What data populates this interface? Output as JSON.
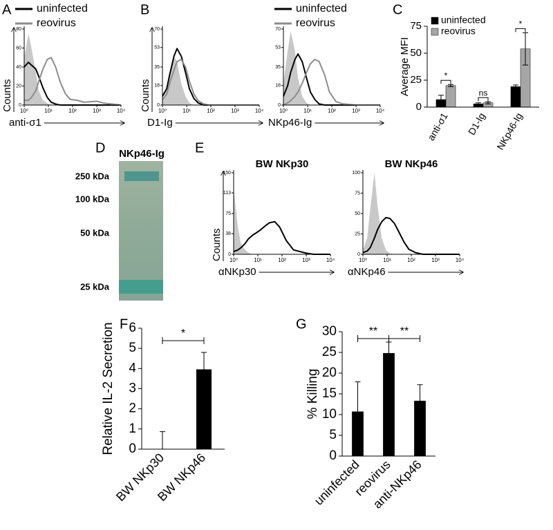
{
  "chart_data": [
    {
      "type": "line",
      "label": "A",
      "xscale": "log",
      "x": [
        1,
        1.5,
        2,
        3,
        4,
        6,
        9,
        13,
        20,
        30,
        50,
        80,
        150,
        300,
        1000,
        2000,
        10000
      ],
      "xlim": [
        1,
        10000
      ],
      "xticks": [
        {
          "value": 1,
          "label": "10⁰"
        },
        {
          "value": 10,
          "label": "10¹"
        },
        {
          "value": 100,
          "label": "10²"
        },
        {
          "value": 1000,
          "label": "10³"
        },
        {
          "value": 10000,
          "label": "10⁴"
        }
      ],
      "ylim": [
        0,
        80
      ],
      "yticks": [
        0,
        20,
        40,
        60,
        80
      ],
      "xlabel": "anti-σ1",
      "ylabel": "Counts",
      "series": [
        {
          "color": "#c8c8c8",
          "fill": true,
          "values": [
            50,
            75,
            60,
            35,
            15,
            5,
            2,
            0,
            0,
            0,
            0,
            0,
            0,
            0,
            0,
            0,
            0
          ]
        },
        {
          "name": "uninfected",
          "color": "#000000",
          "values": [
            40,
            45,
            42,
            38,
            30,
            18,
            8,
            3,
            1,
            0,
            0,
            0,
            0,
            0,
            0,
            0,
            0
          ]
        },
        {
          "name": "reovirus",
          "color": "#8c8c8c",
          "values": [
            5,
            5,
            8,
            15,
            25,
            38,
            48,
            50,
            40,
            25,
            12,
            6,
            5,
            3,
            4,
            2,
            0
          ]
        }
      ]
    },
    {
      "type": "line",
      "label": "B",
      "xscale": "log",
      "x": [
        1,
        1.5,
        2,
        3,
        4,
        6,
        9,
        13,
        20,
        30,
        50,
        80,
        150,
        300,
        1000,
        2000,
        10000
      ],
      "xlim": [
        1,
        10000
      ],
      "xticks": [
        {
          "value": 1,
          "label": "10⁰"
        },
        {
          "value": 10,
          "label": "10¹"
        },
        {
          "value": 100,
          "label": "10²"
        },
        {
          "value": 1000,
          "label": "10³"
        },
        {
          "value": 10000,
          "label": "10⁴"
        }
      ],
      "ylim": [
        0,
        70
      ],
      "yticks": [
        0,
        18,
        35,
        53,
        70
      ],
      "xlabel": "D1-Ig",
      "ylabel": "Counts",
      "series": [
        {
          "color": "#c8c8c8",
          "fill": true,
          "values": [
            5,
            15,
            30,
            45,
            40,
            20,
            8,
            2,
            0,
            0,
            0,
            0,
            0,
            0,
            0,
            0,
            0
          ]
        },
        {
          "color": "#000000",
          "values": [
            8,
            15,
            28,
            45,
            52,
            45,
            30,
            15,
            6,
            2,
            0,
            0,
            0,
            0,
            0,
            0,
            0
          ]
        },
        {
          "color": "#8c8c8c",
          "values": [
            5,
            10,
            20,
            32,
            40,
            42,
            35,
            22,
            10,
            4,
            1,
            0,
            0,
            0,
            0,
            0,
            0
          ]
        }
      ]
    },
    {
      "type": "line",
      "xscale": "log",
      "x": [
        1,
        1.5,
        2,
        3,
        4,
        6,
        9,
        13,
        20,
        30,
        50,
        80,
        150,
        300,
        1000,
        2000,
        10000
      ],
      "xlim": [
        1,
        10000
      ],
      "xticks": [
        {
          "value": 1,
          "label": "10⁰"
        },
        {
          "value": 10,
          "label": "10¹"
        },
        {
          "value": 100,
          "label": "10²"
        },
        {
          "value": 1000,
          "label": "10³"
        },
        {
          "value": 10000,
          "label": "10⁴"
        }
      ],
      "ylim": [
        0,
        70
      ],
      "yticks": [
        0,
        18,
        35,
        53,
        70
      ],
      "xlabel": "NKp46-Ig",
      "series": [
        {
          "color": "#c8c8c8",
          "fill": true,
          "values": [
            20,
            50,
            68,
            50,
            25,
            8,
            2,
            0,
            0,
            0,
            0,
            0,
            0,
            0,
            0,
            0,
            0
          ]
        },
        {
          "name": "uninfected",
          "color": "#000000",
          "values": [
            8,
            18,
            30,
            42,
            47,
            40,
            25,
            12,
            5,
            1,
            0,
            0,
            0,
            0,
            0,
            0,
            0
          ]
        },
        {
          "name": "reovirus",
          "color": "#8c8c8c",
          "values": [
            0,
            2,
            4,
            8,
            12,
            20,
            30,
            38,
            42,
            40,
            28,
            12,
            3,
            1,
            0,
            0,
            0
          ]
        }
      ]
    },
    {
      "type": "bar",
      "label": "C",
      "categories": [
        "anti-σ1",
        "D1-Ig",
        "NKp46-Ig"
      ],
      "ylim": [
        0,
        75
      ],
      "yticks": [
        0,
        25,
        50,
        75
      ],
      "ylabel": "Average MFI",
      "series": [
        {
          "name": "uninfected",
          "color": "#000000",
          "values": [
            7,
            3,
            19
          ],
          "errors": [
            4,
            1,
            1.5
          ]
        },
        {
          "name": "reovirus",
          "color": "#a6a6a6",
          "values": [
            20,
            4,
            54
          ],
          "errors": [
            1,
            1,
            15
          ]
        }
      ],
      "annotations": [
        "*",
        "ns",
        "*"
      ]
    },
    {
      "type": "line",
      "label": "E",
      "title": "BW NKp30",
      "xscale": "log",
      "x": [
        1,
        1.5,
        2,
        3,
        4,
        6,
        9,
        13,
        20,
        30,
        50,
        80,
        150,
        300,
        1000,
        2000,
        10000
      ],
      "xlim": [
        1,
        10000
      ],
      "xticks": [
        {
          "value": 1,
          "label": "10⁰"
        },
        {
          "value": 10,
          "label": "10¹"
        },
        {
          "value": 100,
          "label": "10²"
        },
        {
          "value": 1000,
          "label": "10³"
        },
        {
          "value": 10000,
          "label": "10⁴"
        }
      ],
      "ylim": [
        0,
        150
      ],
      "yticks": [
        0,
        38,
        75,
        113,
        150
      ],
      "xlabel": "αNKp30",
      "ylabel": "Counts",
      "series": [
        {
          "color": "#c8c8c8",
          "fill": true,
          "values": [
            120,
            50,
            20,
            8,
            3,
            0,
            0,
            0,
            0,
            0,
            0,
            0,
            0,
            0,
            0,
            0,
            0
          ]
        },
        {
          "color": "#000000",
          "values": [
            5,
            8,
            12,
            20,
            28,
            35,
            40,
            45,
            52,
            58,
            60,
            50,
            25,
            8,
            2,
            0,
            0
          ]
        }
      ]
    },
    {
      "type": "line",
      "title": "BW NKp46",
      "xscale": "log",
      "x": [
        1,
        1.5,
        2,
        3,
        4,
        6,
        9,
        13,
        20,
        30,
        50,
        80,
        150,
        300,
        1000,
        2000,
        10000
      ],
      "xlim": [
        1,
        10000
      ],
      "xticks": [
        {
          "value": 1,
          "label": "10⁰"
        },
        {
          "value": 10,
          "label": "10¹"
        },
        {
          "value": 100,
          "label": "10²"
        },
        {
          "value": 1000,
          "label": "10³"
        },
        {
          "value": 10000,
          "label": "10⁴"
        }
      ],
      "ylim": [
        0,
        100
      ],
      "yticks": [
        0,
        25,
        50,
        75,
        100
      ],
      "xlabel": "αNKp46",
      "series": [
        {
          "color": "#c8c8c8",
          "fill": true,
          "values": [
            5,
            20,
            55,
            100,
            60,
            20,
            5,
            1,
            0,
            0,
            0,
            0,
            0,
            0,
            0,
            0,
            0
          ]
        },
        {
          "color": "#000000",
          "values": [
            2,
            4,
            8,
            20,
            30,
            40,
            45,
            44,
            38,
            28,
            15,
            6,
            2,
            0,
            0,
            0,
            0
          ]
        }
      ]
    },
    {
      "type": "bar",
      "label": "F",
      "categories": [
        "BW NKp30",
        "BW NKp46"
      ],
      "values": [
        0,
        3.95
      ],
      "errors": [
        0.87,
        0.85
      ],
      "color": "#000000",
      "ylim": [
        0,
        6
      ],
      "yticks": [
        0,
        1,
        2,
        3,
        4,
        5,
        6
      ],
      "ylabel": "Relative IL-2 Secretion",
      "annotations": [
        "*"
      ]
    },
    {
      "type": "bar",
      "label": "G",
      "categories": [
        "uninfected",
        "reovirus",
        "anti-NKp46"
      ],
      "values": [
        10.7,
        24.8,
        13.3
      ],
      "errors": [
        7.2,
        2.7,
        3.9
      ],
      "color": "#000000",
      "ylim": [
        0,
        30
      ],
      "yticks": [
        0,
        5,
        10,
        15,
        20,
        25,
        30
      ],
      "ylabel": "% Killing",
      "annotations": [
        "**",
        "**"
      ]
    }
  ],
  "gel_panel": {
    "label": "D",
    "title": "NKp46-Ig",
    "markers": [
      "250 kDa",
      "100 kDa",
      "50 kDa",
      "25 kDa"
    ]
  }
}
